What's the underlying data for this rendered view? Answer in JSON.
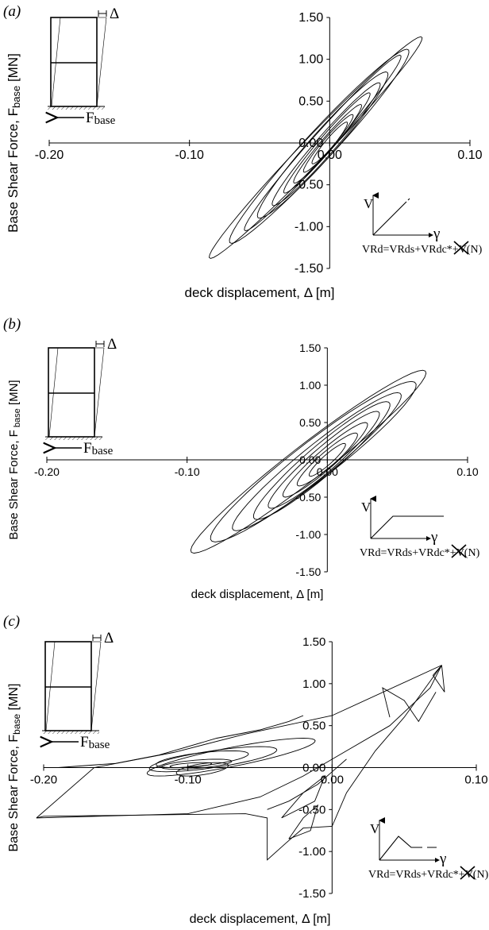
{
  "panels": [
    {
      "panel_label": "(a)",
      "ylabel": "Base Shear Force, F",
      "ylabel_sub": "base",
      "ylabel_unit": " [MN]",
      "xlabel": "deck displacement, Δ [m]",
      "frame_force_label": "F",
      "frame_force_sub": "base",
      "frame_disp_label": "Δ",
      "inset_v": "V",
      "inset_gamma": "γ",
      "equation": "VRd=VRds+VRdc*+V(N)"
    },
    {
      "panel_label": "(b)",
      "ylabel": "Base Shear Force, F",
      "ylabel_sub": " base",
      "ylabel_unit": " [MN]",
      "xlabel": "deck displacement, Δ [m]",
      "frame_force_label": "F",
      "frame_force_sub": "base",
      "frame_disp_label": "Δ",
      "inset_v": "V",
      "inset_gamma": "γ",
      "equation": "VRd=VRds+VRdc*+V(N)"
    },
    {
      "panel_label": "(c)",
      "ylabel": "Base Shear Force, F",
      "ylabel_sub": "base",
      "ylabel_unit": " [MN]",
      "xlabel": "deck displacement, Δ [m]",
      "frame_force_label": "F",
      "frame_force_sub": "base",
      "frame_disp_label": "Δ",
      "inset_v": "V",
      "inset_gamma": "γ",
      "equation": "VRd=VRds+VRdc*+V(N)"
    }
  ],
  "chart_data": [
    {
      "type": "line",
      "xlim": [
        -0.2,
        0.1
      ],
      "ylim": [
        -1.5,
        1.5
      ],
      "x_ticks": [
        -0.2,
        -0.1,
        0.0,
        0.1
      ],
      "x_tick_labels": [
        "-0.20",
        "-0.10",
        "0.00",
        "0.10"
      ],
      "y_ticks": [
        1.5,
        1.0,
        0.5,
        0.0,
        -0.5,
        -1.0,
        -1.5
      ],
      "y_tick_labels": [
        "1.50",
        "1.00",
        "0.50",
        "0.00",
        "-0.50",
        "-1.00",
        "-1.50"
      ],
      "grid": false,
      "series": [
        {
          "loops": [
            [
              -0.085,
              -1.38,
              0.065,
              1.27,
              0.012
            ],
            [
              -0.07,
              -1.2,
              0.055,
              1.12,
              0.014
            ],
            [
              -0.06,
              -1.05,
              0.05,
              1.05,
              0.01
            ],
            [
              -0.05,
              -0.9,
              0.04,
              0.85,
              0.012
            ],
            [
              -0.04,
              -0.75,
              0.035,
              0.72,
              0.009
            ],
            [
              -0.032,
              -0.6,
              0.028,
              0.6,
              0.007
            ],
            [
              -0.025,
              -0.48,
              0.022,
              0.46,
              0.006
            ],
            [
              -0.018,
              -0.35,
              0.016,
              0.34,
              0.005
            ],
            [
              -0.012,
              -0.25,
              0.012,
              0.25,
              0.004
            ]
          ]
        }
      ]
    },
    {
      "type": "line",
      "xlim": [
        -0.2,
        0.1
      ],
      "ylim": [
        -1.5,
        1.5
      ],
      "x_ticks": [
        -0.2,
        -0.1,
        0.0,
        0.1
      ],
      "x_tick_labels": [
        "-0.20",
        "-0.10",
        "0.00",
        "0.10"
      ],
      "y_ticks": [
        1.5,
        1.0,
        0.5,
        0.0,
        -0.5,
        -1.0,
        -1.5
      ],
      "y_tick_labels": [
        "1.50",
        "1.00",
        "0.50",
        "0.00",
        "-0.50",
        "-1.00",
        "-1.50"
      ],
      "grid": false,
      "series": [
        {
          "loops": [
            [
              -0.095,
              -1.25,
              0.068,
              1.2,
              0.02
            ],
            [
              -0.08,
              -1.1,
              0.06,
              1.05,
              0.022
            ],
            [
              -0.065,
              -0.95,
              0.05,
              0.9,
              0.018
            ],
            [
              -0.05,
              -0.8,
              0.042,
              0.78,
              0.016
            ],
            [
              -0.04,
              -0.65,
              0.035,
              0.65,
              0.013
            ],
            [
              -0.03,
              -0.5,
              0.027,
              0.5,
              0.01
            ],
            [
              -0.02,
              -0.35,
              0.02,
              0.36,
              0.008
            ],
            [
              -0.012,
              -0.22,
              0.012,
              0.22,
              0.005
            ]
          ]
        }
      ]
    },
    {
      "type": "line",
      "xlim": [
        -0.2,
        0.1
      ],
      "ylim": [
        -1.5,
        1.5
      ],
      "x_ticks": [
        -0.2,
        -0.1,
        0.0,
        0.1
      ],
      "x_tick_labels": [
        "-0.20",
        "-0.10",
        "0.00",
        "0.10"
      ],
      "y_ticks": [
        1.5,
        1.0,
        0.5,
        0.0,
        -0.5,
        -1.0,
        -1.5
      ],
      "y_tick_labels": [
        "1.50",
        "1.00",
        "0.50",
        "0.00",
        "-0.50",
        "-1.00",
        "-1.50"
      ],
      "grid": false,
      "series": [
        {
          "paths": [
            [
              [
                -0.205,
                -0.6
              ],
              [
                -0.165,
                0.0
              ],
              [
                -0.11,
                0.18
              ],
              [
                -0.06,
                0.4
              ],
              [
                0.0,
                0.62
              ],
              [
                0.076,
                1.22
              ]
            ],
            [
              [
                0.076,
                1.22
              ],
              [
                0.068,
                0.95
              ],
              [
                0.04,
                0.5
              ],
              [
                0.01,
                0.2
              ],
              [
                -0.02,
                -0.1
              ],
              [
                -0.05,
                -0.35
              ],
              [
                -0.1,
                -0.55
              ],
              [
                -0.205,
                -0.6
              ]
            ],
            [
              [
                -0.205,
                -0.6
              ],
              [
                -0.2,
                -0.58
              ],
              [
                -0.06,
                -0.55
              ],
              [
                -0.045,
                -0.6
              ],
              [
                -0.045,
                -1.1
              ],
              [
                -0.032,
                -0.9
              ],
              [
                -0.02,
                -0.72
              ],
              [
                0.0,
                -0.7
              ],
              [
                0.01,
                -0.3
              ],
              [
                0.03,
                0.2
              ],
              [
                0.05,
                0.6
              ],
              [
                0.076,
                1.22
              ]
            ],
            [
              [
                -0.19,
                0.0
              ],
              [
                -0.15,
                0.05
              ],
              [
                -0.12,
                0.15
              ],
              [
                -0.08,
                0.35
              ],
              [
                -0.05,
                0.45
              ],
              [
                -0.03,
                0.55
              ],
              [
                -0.02,
                0.62
              ]
            ],
            [
              [
                0.076,
                1.22
              ],
              [
                0.07,
                1.1
              ],
              [
                0.078,
                0.9
              ],
              [
                0.076,
                1.22
              ]
            ],
            [
              [
                0.04,
                0.6
              ],
              [
                0.035,
                0.95
              ],
              [
                0.05,
                0.8
              ],
              [
                0.06,
                0.55
              ],
              [
                0.072,
                0.9
              ]
            ],
            [
              [
                -0.045,
                -0.5
              ],
              [
                -0.03,
                -0.4
              ],
              [
                -0.01,
                -0.2
              ],
              [
                0.0,
                -0.05
              ],
              [
                0.01,
                0.1
              ]
            ],
            [
              [
                -0.03,
                -0.85
              ],
              [
                -0.02,
                -0.6
              ],
              [
                -0.01,
                -0.45
              ],
              [
                -0.015,
                -0.75
              ],
              [
                -0.03,
                -0.85
              ]
            ],
            [
              [
                -0.035,
                -0.6
              ],
              [
                -0.02,
                -0.3
              ],
              [
                -0.005,
                -0.1
              ],
              [
                -0.012,
                -0.4
              ],
              [
                -0.035,
                -0.6
              ]
            ]
          ],
          "loops": [
            [
              -0.12,
              -0.1,
              -0.02,
              0.35,
              0.03
            ],
            [
              -0.115,
              -0.05,
              -0.05,
              0.25,
              0.03
            ],
            [
              -0.11,
              0.0,
              -0.07,
              0.2,
              0.025
            ],
            [
              -0.108,
              -0.02,
              -0.08,
              0.1,
              0.02
            ],
            [
              -0.1,
              -0.1,
              -0.08,
              0.06,
              0.015
            ],
            [
              -0.106,
              0.0,
              -0.09,
              0.06,
              0.012
            ]
          ]
        }
      ]
    }
  ]
}
